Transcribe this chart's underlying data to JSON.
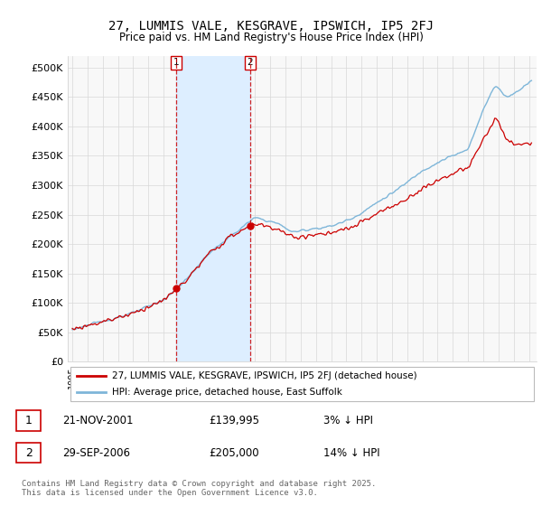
{
  "title": "27, LUMMIS VALE, KESGRAVE, IPSWICH, IP5 2FJ",
  "subtitle": "Price paid vs. HM Land Registry's House Price Index (HPI)",
  "ylabel_ticks": [
    "£0",
    "£50K",
    "£100K",
    "£150K",
    "£200K",
    "£250K",
    "£300K",
    "£350K",
    "£400K",
    "£450K",
    "£500K"
  ],
  "ytick_values": [
    0,
    50000,
    100000,
    150000,
    200000,
    250000,
    300000,
    350000,
    400000,
    450000,
    500000
  ],
  "ylim": [
    0,
    520000
  ],
  "xlim_start": 1994.7,
  "xlim_end": 2025.5,
  "hpi_color": "#7eb6d9",
  "price_color": "#cc0000",
  "vline_color": "#cc0000",
  "shade_color": "#ddeeff",
  "t1": 2001.833,
  "t2": 2006.667,
  "marker1_price": 139995,
  "marker2_price": 205000,
  "legend_house": "27, LUMMIS VALE, KESGRAVE, IPSWICH, IP5 2FJ (detached house)",
  "legend_hpi": "HPI: Average price, detached house, East Suffolk",
  "footer": "Contains HM Land Registry data © Crown copyright and database right 2025.\nThis data is licensed under the Open Government Licence v3.0.",
  "background_color": "#ffffff",
  "grid_color": "#d8d8d8",
  "plot_bg": "#f8f8f8"
}
